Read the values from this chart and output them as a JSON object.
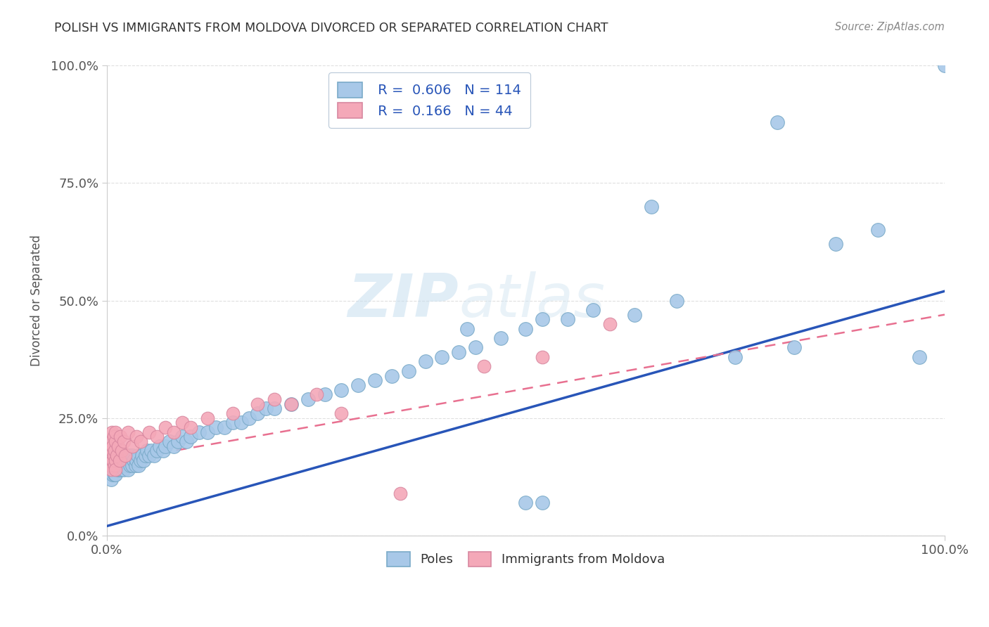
{
  "title": "POLISH VS IMMIGRANTS FROM MOLDOVA DIVORCED OR SEPARATED CORRELATION CHART",
  "source": "Source: ZipAtlas.com",
  "ylabel": "Divorced or Separated",
  "xlim": [
    0.0,
    1.0
  ],
  "ylim": [
    0.0,
    1.0
  ],
  "xtick_labels": [
    "0.0%",
    "100.0%"
  ],
  "ytick_labels": [
    "0.0%",
    "25.0%",
    "50.0%",
    "75.0%",
    "100.0%"
  ],
  "ytick_positions": [
    0.0,
    0.25,
    0.5,
    0.75,
    1.0
  ],
  "watermark_zip": "ZIP",
  "watermark_atlas": "atlas",
  "blue_color": "#a8c8e8",
  "blue_edge": "#7aaac8",
  "pink_color": "#f4a8b8",
  "pink_edge": "#d888a0",
  "blue_line_color": "#2855b8",
  "pink_line_color": "#e87090",
  "title_color": "#333333",
  "source_color": "#888888",
  "axis_label_color": "#555555",
  "tick_color": "#555555",
  "grid_color": "#e0e0e0",
  "blue_trend_start_y": 0.02,
  "blue_trend_end_y": 0.52,
  "pink_trend_start_y": 0.155,
  "pink_trend_end_y": 0.47,
  "blue_points": {
    "x": [
      0.005,
      0.005,
      0.005,
      0.005,
      0.005,
      0.007,
      0.007,
      0.007,
      0.007,
      0.008,
      0.008,
      0.008,
      0.009,
      0.009,
      0.009,
      0.01,
      0.01,
      0.01,
      0.01,
      0.01,
      0.012,
      0.012,
      0.013,
      0.013,
      0.014,
      0.014,
      0.015,
      0.015,
      0.015,
      0.017,
      0.017,
      0.018,
      0.018,
      0.019,
      0.02,
      0.02,
      0.02,
      0.02,
      0.022,
      0.023,
      0.025,
      0.025,
      0.027,
      0.028,
      0.03,
      0.03,
      0.032,
      0.034,
      0.035,
      0.037,
      0.038,
      0.04,
      0.042,
      0.044,
      0.046,
      0.048,
      0.05,
      0.053,
      0.056,
      0.06,
      0.063,
      0.067,
      0.07,
      0.075,
      0.08,
      0.085,
      0.09,
      0.095,
      0.1,
      0.11,
      0.12,
      0.13,
      0.14,
      0.15,
      0.16,
      0.17,
      0.18,
      0.19,
      0.2,
      0.22,
      0.24,
      0.26,
      0.28,
      0.3,
      0.32,
      0.34,
      0.36,
      0.38,
      0.4,
      0.42,
      0.44,
      0.47,
      0.5,
      0.52,
      0.55,
      0.58,
      0.63,
      0.68,
      0.75,
      0.82,
      0.87,
      0.92,
      0.97,
      0.5,
      0.52,
      0.43,
      0.65,
      0.8,
      1.0
    ],
    "y": [
      0.14,
      0.16,
      0.18,
      0.12,
      0.15,
      0.15,
      0.17,
      0.13,
      0.16,
      0.15,
      0.14,
      0.17,
      0.15,
      0.16,
      0.13,
      0.15,
      0.16,
      0.14,
      0.17,
      0.13,
      0.15,
      0.16,
      0.14,
      0.16,
      0.15,
      0.17,
      0.14,
      0.16,
      0.15,
      0.16,
      0.14,
      0.15,
      0.17,
      0.15,
      0.16,
      0.14,
      0.17,
      0.15,
      0.16,
      0.15,
      0.14,
      0.16,
      0.17,
      0.15,
      0.15,
      0.17,
      0.16,
      0.15,
      0.16,
      0.17,
      0.15,
      0.16,
      0.17,
      0.16,
      0.17,
      0.18,
      0.17,
      0.18,
      0.17,
      0.18,
      0.19,
      0.18,
      0.19,
      0.2,
      0.19,
      0.2,
      0.21,
      0.2,
      0.21,
      0.22,
      0.22,
      0.23,
      0.23,
      0.24,
      0.24,
      0.25,
      0.26,
      0.27,
      0.27,
      0.28,
      0.29,
      0.3,
      0.31,
      0.32,
      0.33,
      0.34,
      0.35,
      0.37,
      0.38,
      0.39,
      0.4,
      0.42,
      0.44,
      0.46,
      0.46,
      0.48,
      0.47,
      0.5,
      0.38,
      0.4,
      0.62,
      0.65,
      0.38,
      0.07,
      0.07,
      0.44,
      0.7,
      0.88,
      1.0
    ]
  },
  "pink_points": {
    "x": [
      0.004,
      0.005,
      0.005,
      0.005,
      0.006,
      0.006,
      0.007,
      0.007,
      0.008,
      0.008,
      0.009,
      0.009,
      0.01,
      0.01,
      0.01,
      0.01,
      0.012,
      0.013,
      0.015,
      0.016,
      0.018,
      0.02,
      0.022,
      0.025,
      0.03,
      0.035,
      0.04,
      0.05,
      0.06,
      0.07,
      0.08,
      0.09,
      0.1,
      0.12,
      0.15,
      0.18,
      0.2,
      0.22,
      0.25,
      0.28,
      0.35,
      0.45,
      0.52,
      0.6
    ],
    "y": [
      0.15,
      0.14,
      0.17,
      0.2,
      0.18,
      0.22,
      0.16,
      0.19,
      0.17,
      0.21,
      0.15,
      0.18,
      0.16,
      0.2,
      0.14,
      0.22,
      0.17,
      0.19,
      0.16,
      0.21,
      0.18,
      0.2,
      0.17,
      0.22,
      0.19,
      0.21,
      0.2,
      0.22,
      0.21,
      0.23,
      0.22,
      0.24,
      0.23,
      0.25,
      0.26,
      0.28,
      0.29,
      0.28,
      0.3,
      0.26,
      0.09,
      0.36,
      0.38,
      0.45
    ]
  }
}
